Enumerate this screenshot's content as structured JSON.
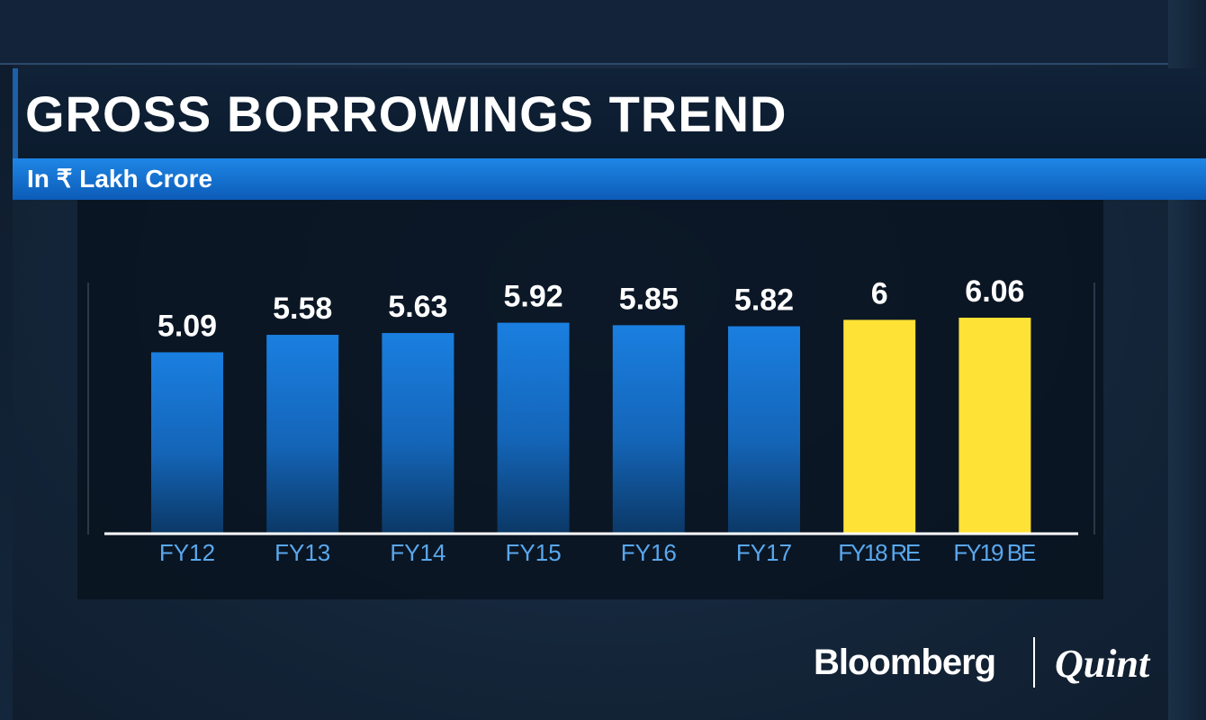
{
  "header": {
    "title": "GROSS BORROWINGS TREND",
    "subtitle": "In ₹ Lakh Crore"
  },
  "branding": {
    "left": "Bloomberg",
    "right": "Quint"
  },
  "colors": {
    "actual_bar": "#1a7fe0",
    "estimate_bar": "#ffe236",
    "axis_label": "#59a8ee",
    "value_label": "#ffffff"
  },
  "chart_data": {
    "type": "bar",
    "title": "GROSS BORROWINGS TREND",
    "subtitle": "In ₹ Lakh Crore",
    "categories": [
      "FY12",
      "FY13",
      "FY14",
      "FY15",
      "FY16",
      "FY17",
      "FY18 RE",
      "FY19 BE"
    ],
    "values": [
      5.09,
      5.58,
      5.63,
      5.92,
      5.85,
      5.82,
      6,
      6.06
    ],
    "value_labels": [
      "5.09",
      "5.58",
      "5.63",
      "5.92",
      "5.85",
      "5.82",
      "6",
      "6.06"
    ],
    "highlighted": [
      false,
      false,
      false,
      false,
      false,
      false,
      true,
      true
    ],
    "xlabel": "",
    "ylabel": "",
    "ylim": [
      0,
      7.5
    ],
    "grid": false,
    "legend": "none"
  }
}
